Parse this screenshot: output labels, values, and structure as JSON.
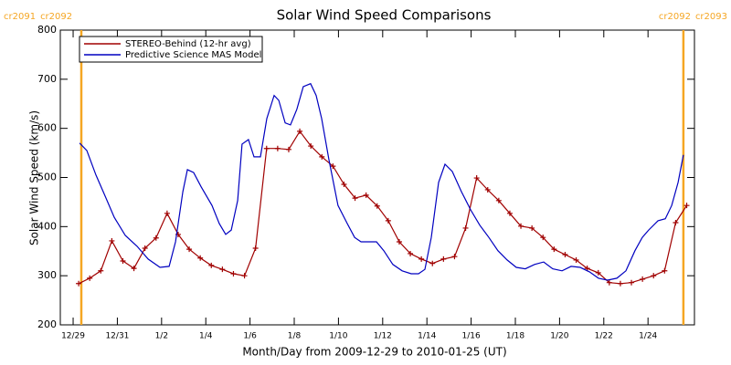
{
  "chart_data": {
    "type": "line",
    "title": "Solar Wind Speed Comparisons",
    "x_label": "Month/Day from 2009-12-29 to 2010-01-25 (UT)",
    "y_label": "Solar Wind Speed (km/s)",
    "xlim": [
      -0.58,
      28.1
    ],
    "xticks": [
      {
        "value": 0,
        "label": "12/29"
      },
      {
        "value": 2,
        "label": "12/31"
      },
      {
        "value": 4,
        "label": "1/2"
      },
      {
        "value": 6,
        "label": "1/4"
      },
      {
        "value": 8,
        "label": "1/6"
      },
      {
        "value": 10,
        "label": "1/8"
      },
      {
        "value": 12,
        "label": "1/10"
      },
      {
        "value": 14,
        "label": "1/12"
      },
      {
        "value": 16,
        "label": "1/14"
      },
      {
        "value": 18,
        "label": "1/16"
      },
      {
        "value": 20,
        "label": "1/18"
      },
      {
        "value": 22,
        "label": "1/20"
      },
      {
        "value": 24,
        "label": "1/22"
      },
      {
        "value": 26,
        "label": "1/24"
      }
    ],
    "ylim": [
      200,
      800
    ],
    "yticks": [
      200,
      300,
      400,
      500,
      600,
      700,
      800
    ],
    "legend": "upper left",
    "rotation_boundaries": [
      {
        "x": 0.37,
        "labels": [
          "cr2091",
          "cr2092"
        ],
        "color": "#f5a623"
      },
      {
        "x": 27.6,
        "labels": [
          "cr2092",
          "cr2093"
        ],
        "color": "#f5a623"
      }
    ],
    "series": [
      {
        "name": "STEREO-Behind (12-hr avg)",
        "color": "#a00000",
        "marker": "+",
        "x": [
          0.25,
          0.75,
          1.25,
          1.75,
          2.25,
          2.75,
          3.25,
          3.75,
          4.25,
          4.75,
          5.25,
          5.75,
          6.25,
          6.75,
          7.25,
          7.75,
          8.25,
          8.75,
          9.25,
          9.75,
          10.25,
          10.75,
          11.25,
          11.75,
          12.25,
          12.75,
          13.25,
          13.75,
          14.25,
          14.75,
          15.25,
          15.75,
          16.25,
          16.75,
          17.25,
          17.75,
          18.25,
          18.75,
          19.25,
          19.75,
          20.25,
          20.75,
          21.25,
          21.75,
          22.25,
          22.75,
          23.25,
          23.75,
          24.25,
          24.75,
          25.25,
          25.75,
          26.25,
          26.75,
          27.25,
          27.75
        ],
        "values": [
          284,
          295,
          310,
          371,
          330,
          315,
          356,
          377,
          427,
          384,
          354,
          336,
          321,
          313,
          304,
          300,
          356,
          559,
          559,
          557,
          594,
          564,
          542,
          523,
          486,
          458,
          464,
          442,
          412,
          369,
          345,
          334,
          325,
          334,
          339,
          397,
          499,
          475,
          453,
          427,
          401,
          397,
          378,
          354,
          343,
          332,
          315,
          306,
          286,
          284,
          286,
          293,
          300,
          310,
          408,
          443
        ]
      },
      {
        "name": "Predictive Science MAS Model",
        "color": "#0000c0",
        "x": [
          0.29,
          0.62,
          1.03,
          1.45,
          1.86,
          2.36,
          2.89,
          3.39,
          3.93,
          4.34,
          4.63,
          4.96,
          5.17,
          5.45,
          5.79,
          6.28,
          6.61,
          6.9,
          7.15,
          7.44,
          7.64,
          7.93,
          8.18,
          8.47,
          8.76,
          9.09,
          9.3,
          9.59,
          9.83,
          10.12,
          10.41,
          10.74,
          10.99,
          11.24,
          11.57,
          11.98,
          12.4,
          12.73,
          13.02,
          13.43,
          13.72,
          14.05,
          14.46,
          14.88,
          15.29,
          15.62,
          15.91,
          16.2,
          16.53,
          16.82,
          17.15,
          17.56,
          17.98,
          18.39,
          18.8,
          19.21,
          19.63,
          20.04,
          20.45,
          20.87,
          21.28,
          21.69,
          22.11,
          22.52,
          22.93,
          23.35,
          23.76,
          24.17,
          24.59,
          25.0,
          25.41,
          25.74,
          26.03,
          26.45,
          26.78,
          27.07,
          27.36,
          27.6
        ],
        "values": [
          570,
          555,
          505,
          462,
          419,
          382,
          360,
          334,
          317,
          319,
          369,
          471,
          516,
          510,
          481,
          443,
          406,
          384,
          393,
          453,
          568,
          577,
          542,
          542,
          620,
          667,
          657,
          611,
          607,
          639,
          685,
          691,
          667,
          620,
          536,
          443,
          406,
          378,
          369,
          369,
          369,
          351,
          323,
          310,
          304,
          304,
          313,
          378,
          490,
          527,
          512,
          471,
          434,
          403,
          378,
          351,
          332,
          317,
          314,
          323,
          328,
          314,
          310,
          319,
          317,
          308,
          295,
          291,
          295,
          310,
          351,
          378,
          393,
          412,
          416,
          443,
          490,
          546
        ]
      }
    ]
  }
}
